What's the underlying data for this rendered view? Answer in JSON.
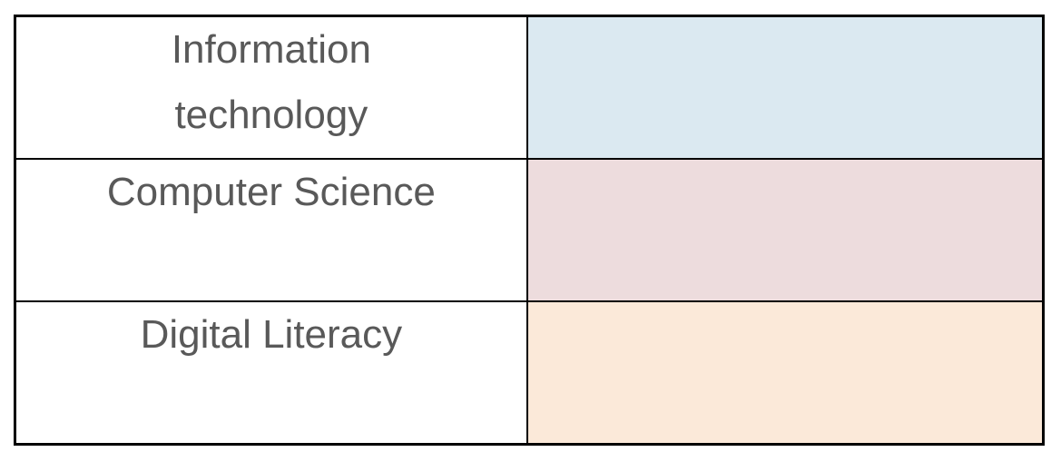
{
  "table": {
    "description": "Three-row table of subject names with colored swatch cells",
    "text_color": "#595959",
    "border_color": "#000000",
    "rows": [
      {
        "label": "Information\ntechnology",
        "swatch_color": "#dbe9f1"
      },
      {
        "label": "Computer Science",
        "swatch_color": "#eddcdd"
      },
      {
        "label": "Digital Literacy",
        "swatch_color": "#fbe9d9"
      }
    ]
  }
}
